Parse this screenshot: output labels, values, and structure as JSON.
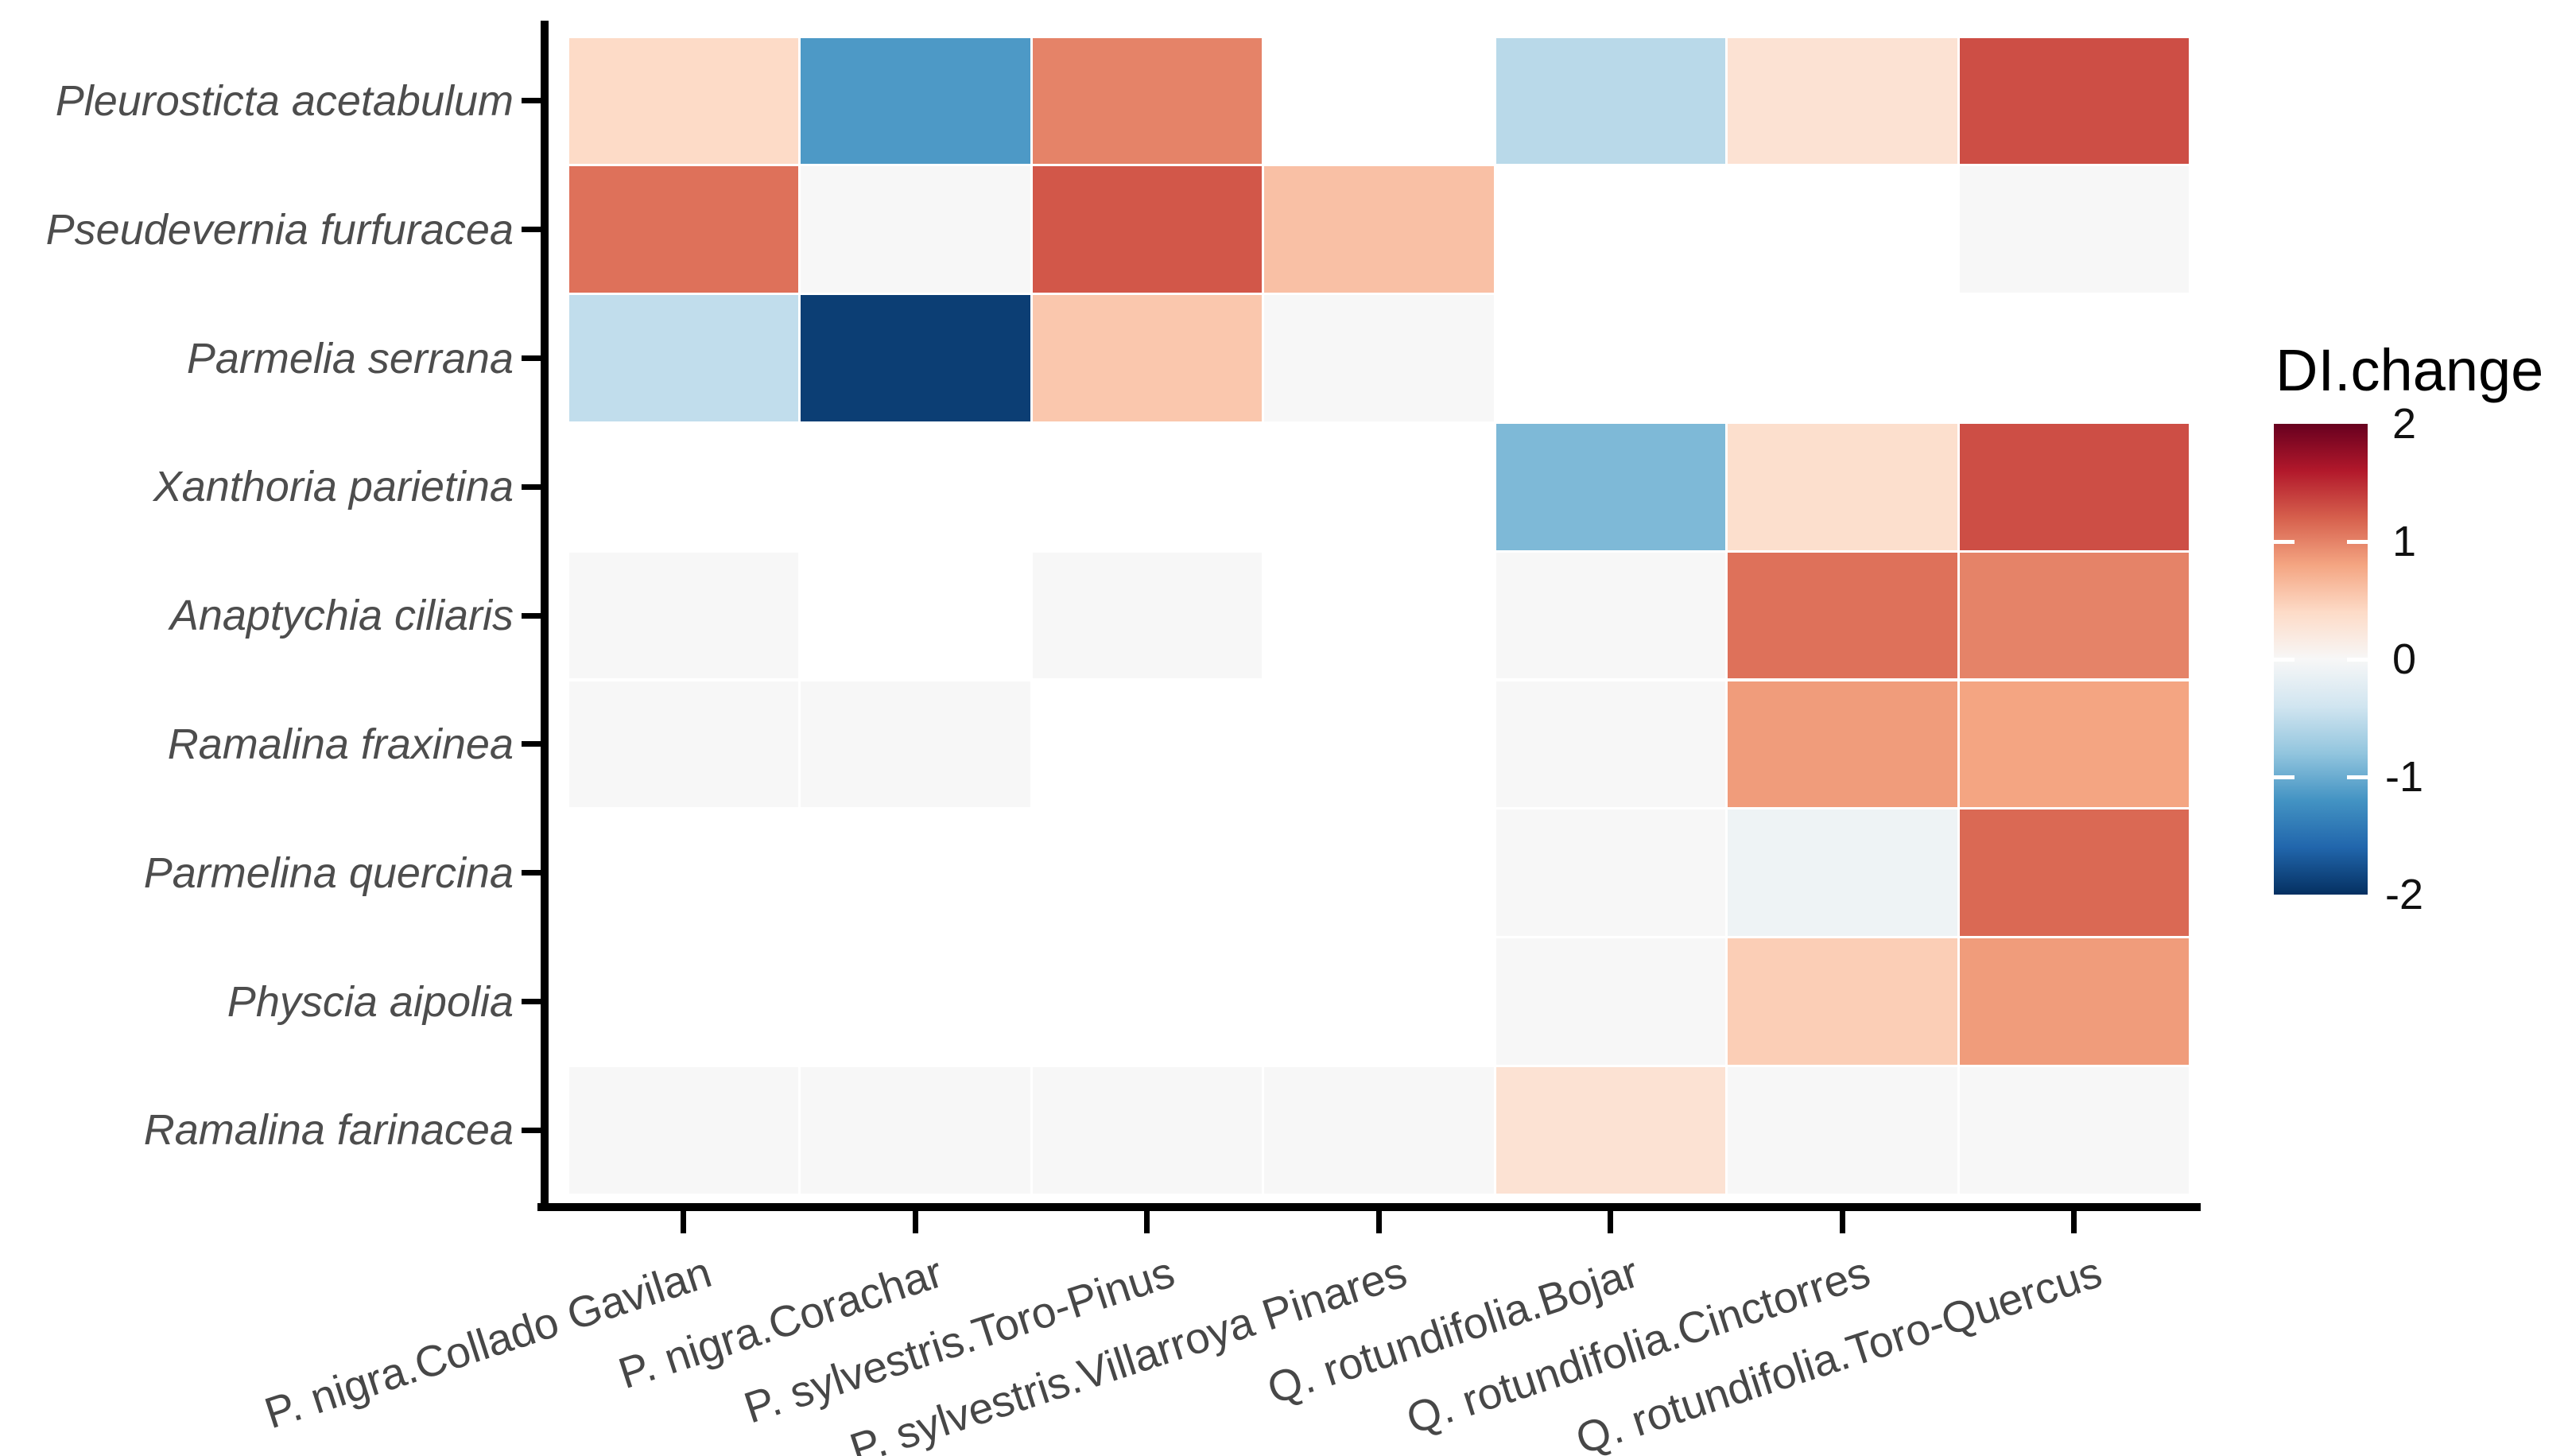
{
  "chart_data": {
    "type": "heatmap",
    "title": "",
    "xlabel": "",
    "ylabel": "",
    "grid": "off",
    "legend_position": "right",
    "x_categories": [
      "P. nigra.Collado Gavilan",
      "P. nigra.Corachar",
      "P. sylvestris.Toro-Pinus",
      "P. sylvestris.Villarroya Pinares",
      "Q. rotundifolia.Bojar",
      "Q. rotundifolia.Cinctorres",
      "Q. rotundifolia.Toro-Quercus"
    ],
    "y_categories": [
      "Pleurosticta acetabulum",
      "Pseudevernia furfuracea",
      "Parmelia serrana",
      "Xanthoria parietina",
      "Anaptychia ciliaris",
      "Ramalina fraxinea",
      "Parmelina quercina",
      "Physcia aipolia",
      "Ramalina farinacea"
    ],
    "values": [
      [
        0.4,
        -1.15,
        1.0,
        null,
        -0.55,
        0.3,
        1.3
      ],
      [
        1.1,
        0.0,
        1.25,
        0.6,
        null,
        null,
        0.0
      ],
      [
        -0.5,
        -1.9,
        0.55,
        0.0,
        null,
        null,
        null
      ],
      [
        null,
        null,
        null,
        null,
        -0.9,
        0.35,
        1.3
      ],
      [
        0.0,
        null,
        0.0,
        null,
        0.0,
        1.1,
        1.0
      ],
      [
        0.0,
        0.0,
        null,
        null,
        0.0,
        0.85,
        0.8
      ],
      [
        null,
        null,
        null,
        null,
        0.0,
        -0.1,
        1.15
      ],
      [
        null,
        null,
        null,
        null,
        0.0,
        0.5,
        0.85
      ],
      [
        0.0,
        0.0,
        0.0,
        0.0,
        0.3,
        0.0,
        0.0
      ]
    ],
    "legend": {
      "title": "DI.change",
      "domain": [
        -2,
        2
      ],
      "tick_values": [
        2,
        1,
        0,
        -1,
        -2
      ],
      "tick_labels": [
        "2",
        "1",
        "0",
        "-1",
        "-2"
      ]
    },
    "colorscale": {
      "name": "RdBu-diverging",
      "anchors_low_to_high": [
        "#053061",
        "#2166ac",
        "#4393c3",
        "#92c5de",
        "#d1e5f0",
        "#f7f7f7",
        "#fddbc7",
        "#f4a582",
        "#d6604d",
        "#b2182b",
        "#67001f"
      ],
      "na_color": "#ffffff"
    },
    "style_colors": {
      "axis_line": "#000000",
      "axis_text": "#4d4d4d",
      "legend_text": "#111111",
      "background": "#ffffff"
    }
  }
}
